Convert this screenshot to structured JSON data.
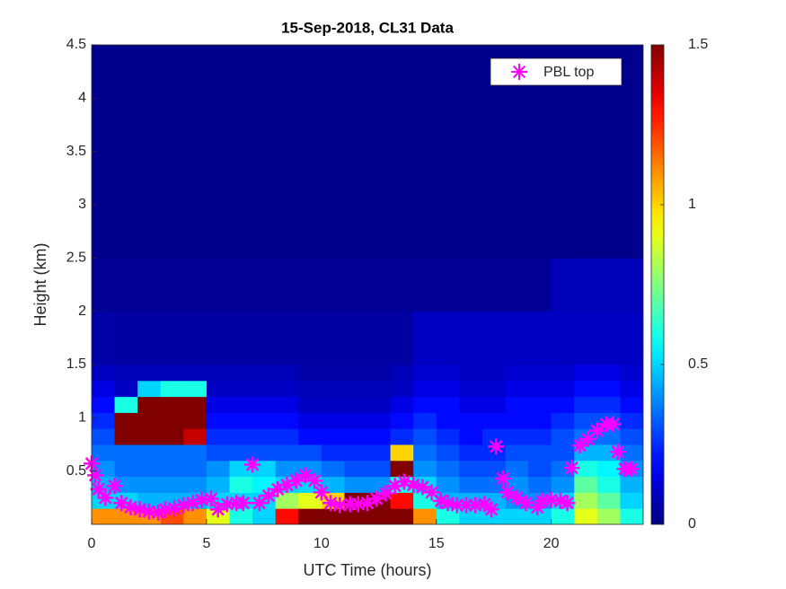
{
  "chart_data": {
    "type": "heatmap-scatter",
    "title": "15-Sep-2018, CL31 Data",
    "xlabel": "UTC Time (hours)",
    "ylabel": "Height (km)",
    "xlim": [
      0,
      24
    ],
    "ylim": [
      0,
      4.5
    ],
    "xticks": [
      0,
      5,
      10,
      15,
      20
    ],
    "yticks": [
      0.5,
      1,
      1.5,
      2,
      2.5,
      3,
      3.5,
      4,
      4.5
    ],
    "colormap": "jet",
    "clim": [
      0,
      1.5
    ],
    "cticks": [
      0,
      0.5,
      1,
      1.5
    ],
    "legend_position": "top-right",
    "heatmap": {
      "x_edges": [
        0,
        1,
        2,
        3,
        4,
        5,
        6,
        7,
        8,
        9,
        10,
        11,
        12,
        13,
        14,
        15,
        16,
        17,
        18,
        19,
        20,
        21,
        22,
        23,
        24
      ],
      "y_edges": [
        0,
        0.15,
        0.3,
        0.45,
        0.6,
        0.75,
        0.9,
        1.05,
        1.2,
        1.35,
        1.5,
        2,
        2.5,
        4.5
      ],
      "values": [
        [
          1.1,
          1.1,
          1.1,
          1.2,
          1.1,
          0.9,
          0.6,
          0.5,
          1.3,
          1.5,
          1.5,
          1.5,
          1.5,
          1.5,
          1.1,
          0.6,
          0.5,
          0.5,
          0.5,
          0.5,
          0.6,
          0.9,
          0.8,
          0.6
        ],
        [
          0.5,
          0.5,
          0.45,
          0.45,
          0.45,
          0.5,
          0.5,
          0.5,
          0.8,
          0.9,
          1.0,
          1.5,
          1.5,
          1.3,
          0.6,
          0.45,
          0.45,
          0.45,
          0.4,
          0.4,
          0.5,
          0.8,
          0.7,
          0.5
        ],
        [
          0.45,
          0.4,
          0.4,
          0.4,
          0.4,
          0.45,
          0.6,
          0.55,
          0.5,
          0.5,
          0.45,
          0.4,
          0.4,
          0.6,
          0.5,
          0.4,
          0.35,
          0.35,
          0.4,
          0.35,
          0.4,
          0.7,
          0.6,
          0.45
        ],
        [
          0.4,
          0.35,
          0.35,
          0.35,
          0.35,
          0.4,
          0.5,
          0.5,
          0.4,
          0.4,
          0.35,
          0.3,
          0.3,
          1.5,
          0.4,
          0.35,
          0.3,
          0.3,
          0.35,
          0.3,
          0.35,
          0.6,
          0.55,
          0.4
        ],
        [
          0.35,
          0.35,
          0.35,
          0.35,
          0.35,
          0.3,
          0.3,
          0.3,
          0.3,
          0.3,
          0.25,
          0.25,
          0.25,
          1.0,
          0.35,
          0.3,
          0.25,
          0.25,
          0.3,
          0.3,
          0.3,
          0.45,
          0.45,
          0.35
        ],
        [
          0.3,
          1.5,
          1.5,
          1.5,
          1.4,
          0.25,
          0.25,
          0.25,
          0.25,
          0.2,
          0.2,
          0.2,
          0.2,
          0.25,
          0.3,
          0.25,
          0.2,
          0.25,
          0.25,
          0.25,
          0.3,
          0.35,
          0.35,
          0.3
        ],
        [
          0.25,
          1.5,
          1.5,
          1.5,
          1.5,
          0.2,
          0.2,
          0.2,
          0.2,
          0.15,
          0.15,
          0.15,
          0.15,
          0.2,
          0.25,
          0.2,
          0.2,
          0.2,
          0.2,
          0.2,
          0.25,
          0.3,
          0.3,
          0.25
        ],
        [
          0.2,
          0.6,
          1.5,
          1.5,
          1.5,
          0.15,
          0.15,
          0.15,
          0.15,
          0.1,
          0.1,
          0.1,
          0.1,
          0.15,
          0.2,
          0.2,
          0.15,
          0.15,
          0.2,
          0.2,
          0.2,
          0.25,
          0.25,
          0.2
        ],
        [
          0.15,
          0.1,
          0.5,
          0.6,
          0.6,
          0.1,
          0.1,
          0.1,
          0.1,
          0.08,
          0.08,
          0.08,
          0.08,
          0.1,
          0.15,
          0.15,
          0.12,
          0.12,
          0.15,
          0.15,
          0.15,
          0.2,
          0.2,
          0.15
        ],
        [
          0.1,
          0.08,
          0.08,
          0.08,
          0.08,
          0.08,
          0.08,
          0.08,
          0.08,
          0.06,
          0.06,
          0.06,
          0.06,
          0.08,
          0.12,
          0.12,
          0.1,
          0.1,
          0.12,
          0.12,
          0.12,
          0.15,
          0.15,
          0.12
        ],
        [
          0.06,
          0.05,
          0.05,
          0.05,
          0.05,
          0.05,
          0.05,
          0.05,
          0.05,
          0.05,
          0.05,
          0.05,
          0.05,
          0.05,
          0.1,
          0.1,
          0.1,
          0.1,
          0.1,
          0.1,
          0.1,
          0.1,
          0.1,
          0.1
        ],
        [
          0.03,
          0.03,
          0.03,
          0.03,
          0.03,
          0.03,
          0.03,
          0.03,
          0.03,
          0.03,
          0.03,
          0.03,
          0.03,
          0.03,
          0.03,
          0.03,
          0.03,
          0.03,
          0.03,
          0.03,
          0.08,
          0.08,
          0.08,
          0.08
        ],
        [
          0.02,
          0.02,
          0.02,
          0.02,
          0.02,
          0.02,
          0.02,
          0.02,
          0.02,
          0.02,
          0.02,
          0.02,
          0.02,
          0.02,
          0.02,
          0.02,
          0.02,
          0.02,
          0.02,
          0.02,
          0.02,
          0.02,
          0.02,
          0.02
        ]
      ]
    },
    "series": [
      {
        "name": "PBL top",
        "color": "#ff00ff",
        "x": [
          0,
          0.16,
          0.3,
          0.6,
          1.0,
          1.3,
          1.7,
          2.1,
          2.5,
          2.9,
          3.2,
          3.6,
          4.0,
          4.4,
          4.8,
          5.2,
          5.5,
          5.9,
          6.3,
          6.6,
          7.0,
          7.3,
          7.7,
          8.1,
          8.5,
          8.9,
          9.3,
          9.7,
          10.0,
          10.4,
          10.8,
          11.25,
          11.6,
          12.0,
          12.4,
          12.8,
          13.2,
          13.6,
          14.0,
          14.4,
          14.8,
          15.2,
          15.5,
          15.9,
          16.3,
          16.7,
          17.1,
          17.4,
          17.6,
          17.9,
          18.1,
          18.5,
          18.9,
          19.4,
          19.6,
          20.0,
          20.4,
          20.7,
          20.9,
          21.25,
          21.6,
          22.0,
          22.4,
          22.7,
          22.9,
          23.2,
          23.5
        ],
        "values": [
          0.57,
          0.46,
          0.33,
          0.25,
          0.36,
          0.2,
          0.16,
          0.14,
          0.12,
          0.11,
          0.14,
          0.15,
          0.18,
          0.2,
          0.23,
          0.24,
          0.14,
          0.19,
          0.2,
          0.2,
          0.56,
          0.2,
          0.27,
          0.33,
          0.37,
          0.41,
          0.46,
          0.41,
          0.3,
          0.2,
          0.18,
          0.19,
          0.19,
          0.2,
          0.24,
          0.29,
          0.36,
          0.4,
          0.37,
          0.35,
          0.3,
          0.22,
          0.2,
          0.18,
          0.18,
          0.18,
          0.19,
          0.14,
          0.73,
          0.43,
          0.3,
          0.25,
          0.2,
          0.16,
          0.22,
          0.23,
          0.22,
          0.2,
          0.53,
          0.74,
          0.8,
          0.88,
          0.94,
          0.94,
          0.68,
          0.52,
          0.52
        ]
      }
    ]
  }
}
